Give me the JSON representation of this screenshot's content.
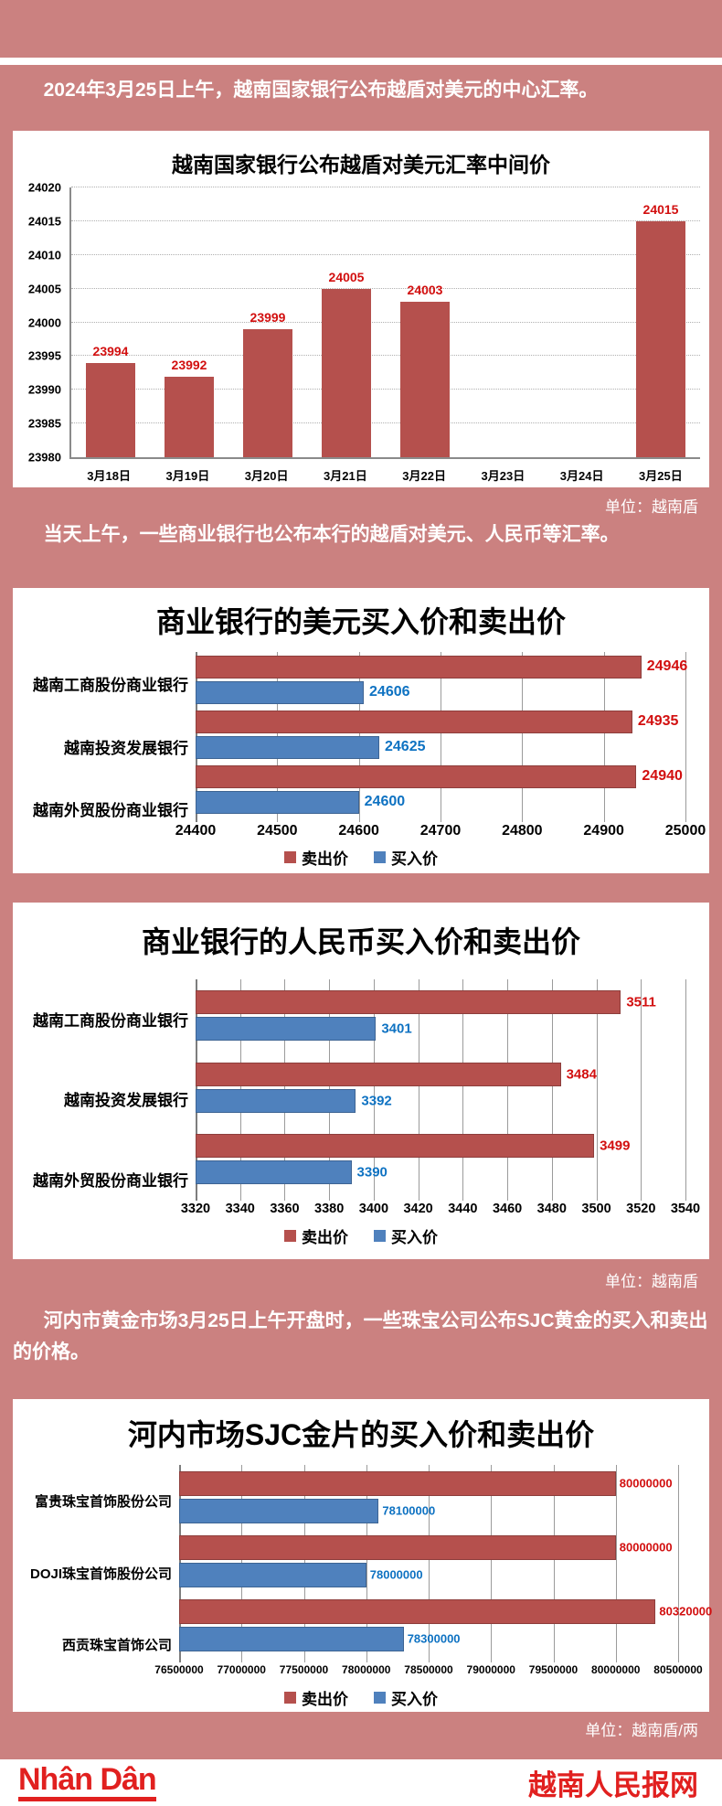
{
  "article": {
    "paragraphs": [
      "2024年3月25日上午，越南国家银行公布越盾对美元的中心汇率。",
      "当天上午，一些商业银行也公布本行的越盾对美元、人民币等汇率。",
      "河内市黄金市场3月25日上午开盘时，一些珠宝公司公布SJC黄金的买入和卖出的价格。"
    ],
    "unit_notes": [
      "单位：越南盾",
      "单位：越南盾",
      "单位：越南盾/两"
    ]
  },
  "footer": {
    "logo_text": "Nhân Dân",
    "site_name": "越南人民报网"
  },
  "colors": {
    "page_background": "#cb8180",
    "card_background": "#ffffff",
    "sell_bar": "#b5504d",
    "buy_bar": "#4f81bd",
    "sell_label": "#d20f0f",
    "buy_label": "#0e72c2",
    "footer_red": "#e1201f"
  },
  "chart_data": [
    {
      "id": "sbv-central-rate",
      "type": "bar",
      "title": "越南国家银行公布越盾对美元汇率中间价",
      "categories": [
        "3月18日",
        "3月19日",
        "3月20日",
        "3月21日",
        "3月22日",
        "3月23日",
        "3月24日",
        "3月25日"
      ],
      "values": [
        23994,
        23992,
        23999,
        24005,
        24003,
        null,
        null,
        24015
      ],
      "ylim": [
        23980,
        24020
      ],
      "ytick_step": 5,
      "bar_color": "#b5504d",
      "label_color": "#d20f0f",
      "grid": true,
      "unit": "单位：越南盾"
    },
    {
      "id": "usd-buy-sell",
      "type": "hbar-group",
      "title": "商业银行的美元买入价和卖出价",
      "categories": [
        "越南工商股份商业银行",
        "越南投资发展银行",
        "越南外贸股份商业银行"
      ],
      "series": [
        {
          "name": "卖出价",
          "color": "#b5504d",
          "label_color": "#d20f0f",
          "values": [
            24946,
            24935,
            24940
          ]
        },
        {
          "name": "买入价",
          "color": "#4f81bd",
          "label_color": "#0e72c2",
          "values": [
            24606,
            24625,
            24600
          ]
        }
      ],
      "xlim": [
        24400,
        25000
      ],
      "xtick_step": 100,
      "legend_position": "bottom",
      "grid": true
    },
    {
      "id": "cny-buy-sell",
      "type": "hbar-group",
      "title": "商业银行的人民币买入价和卖出价",
      "categories": [
        "越南工商股份商业银行",
        "越南投资发展银行",
        "越南外贸股份商业银行"
      ],
      "series": [
        {
          "name": "卖出价",
          "color": "#b5504d",
          "label_color": "#d20f0f",
          "values": [
            3511,
            3484,
            3499
          ]
        },
        {
          "name": "买入价",
          "color": "#4f81bd",
          "label_color": "#0e72c2",
          "values": [
            3401,
            3392,
            3390
          ]
        }
      ],
      "xlim": [
        3320,
        3540
      ],
      "xtick_step": 20,
      "legend_position": "bottom",
      "grid": true,
      "unit": "单位：越南盾"
    },
    {
      "id": "sjc-gold-hanoi",
      "type": "hbar-group",
      "title": "河内市场SJC金片的买入价和卖出价",
      "categories": [
        "富贵珠宝首饰股份公司",
        "DOJI珠宝首饰股份公司",
        "西贡珠宝首饰公司"
      ],
      "series": [
        {
          "name": "卖出价",
          "color": "#b5504d",
          "label_color": "#d20f0f",
          "values": [
            80000000,
            80000000,
            80320000
          ]
        },
        {
          "name": "买入价",
          "color": "#4f81bd",
          "label_color": "#0e72c2",
          "values": [
            78100000,
            78000000,
            78300000
          ]
        }
      ],
      "xlim": [
        76500000,
        80500000
      ],
      "xtick_step": 500000,
      "legend_position": "bottom",
      "grid": true,
      "unit": "单位：越南盾/两"
    }
  ]
}
